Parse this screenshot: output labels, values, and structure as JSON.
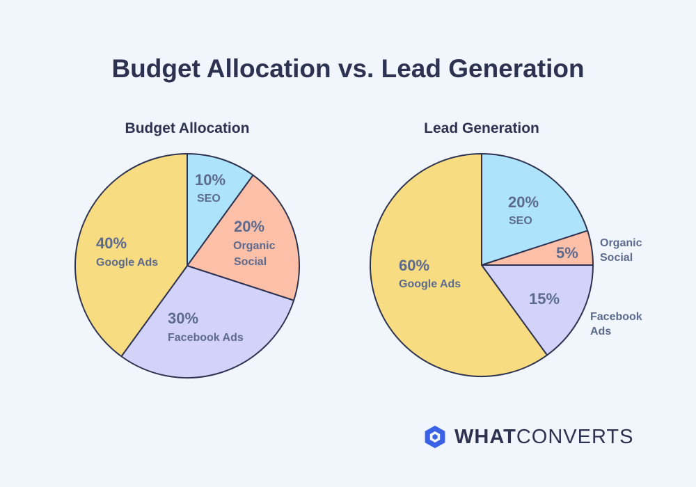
{
  "title": "Budget Allocation vs. Lead Generation",
  "colors": {
    "Google Ads": "#f7dc82",
    "SEO": "#aee4fb",
    "Organic Social": "#fcbfa8",
    "Facebook Ads": "#d3d3fa",
    "outline": "#2d3250",
    "brand": "#3b62e6"
  },
  "chart_data": [
    {
      "type": "pie",
      "title": "Budget Allocation",
      "slices": [
        {
          "label": "SEO",
          "value": 10,
          "pct_label": "10%",
          "label_lines": [
            "SEO"
          ]
        },
        {
          "label": "Organic Social",
          "value": 20,
          "pct_label": "20%",
          "label_lines": [
            "Organic",
            "Social"
          ]
        },
        {
          "label": "Facebook Ads",
          "value": 30,
          "pct_label": "30%",
          "label_lines": [
            "Facebook Ads"
          ]
        },
        {
          "label": "Google Ads",
          "value": 40,
          "pct_label": "40%",
          "label_lines": [
            "Google Ads"
          ]
        }
      ]
    },
    {
      "type": "pie",
      "title": "Lead Generation",
      "slices": [
        {
          "label": "SEO",
          "value": 20,
          "pct_label": "20%",
          "label_lines": [
            "SEO"
          ]
        },
        {
          "label": "Organic Social",
          "value": 5,
          "pct_label": "5%",
          "label_lines": [
            "Organic",
            "Social"
          ]
        },
        {
          "label": "Facebook Ads",
          "value": 15,
          "pct_label": "15%",
          "label_lines": [
            "Facebook",
            "Ads"
          ]
        },
        {
          "label": "Google Ads",
          "value": 60,
          "pct_label": "60%",
          "label_lines": [
            "Google Ads"
          ]
        }
      ]
    }
  ],
  "logo": {
    "bold": "WHAT",
    "regular": "CONVERTS",
    "icon": "whatconverts-hexagon-icon"
  }
}
